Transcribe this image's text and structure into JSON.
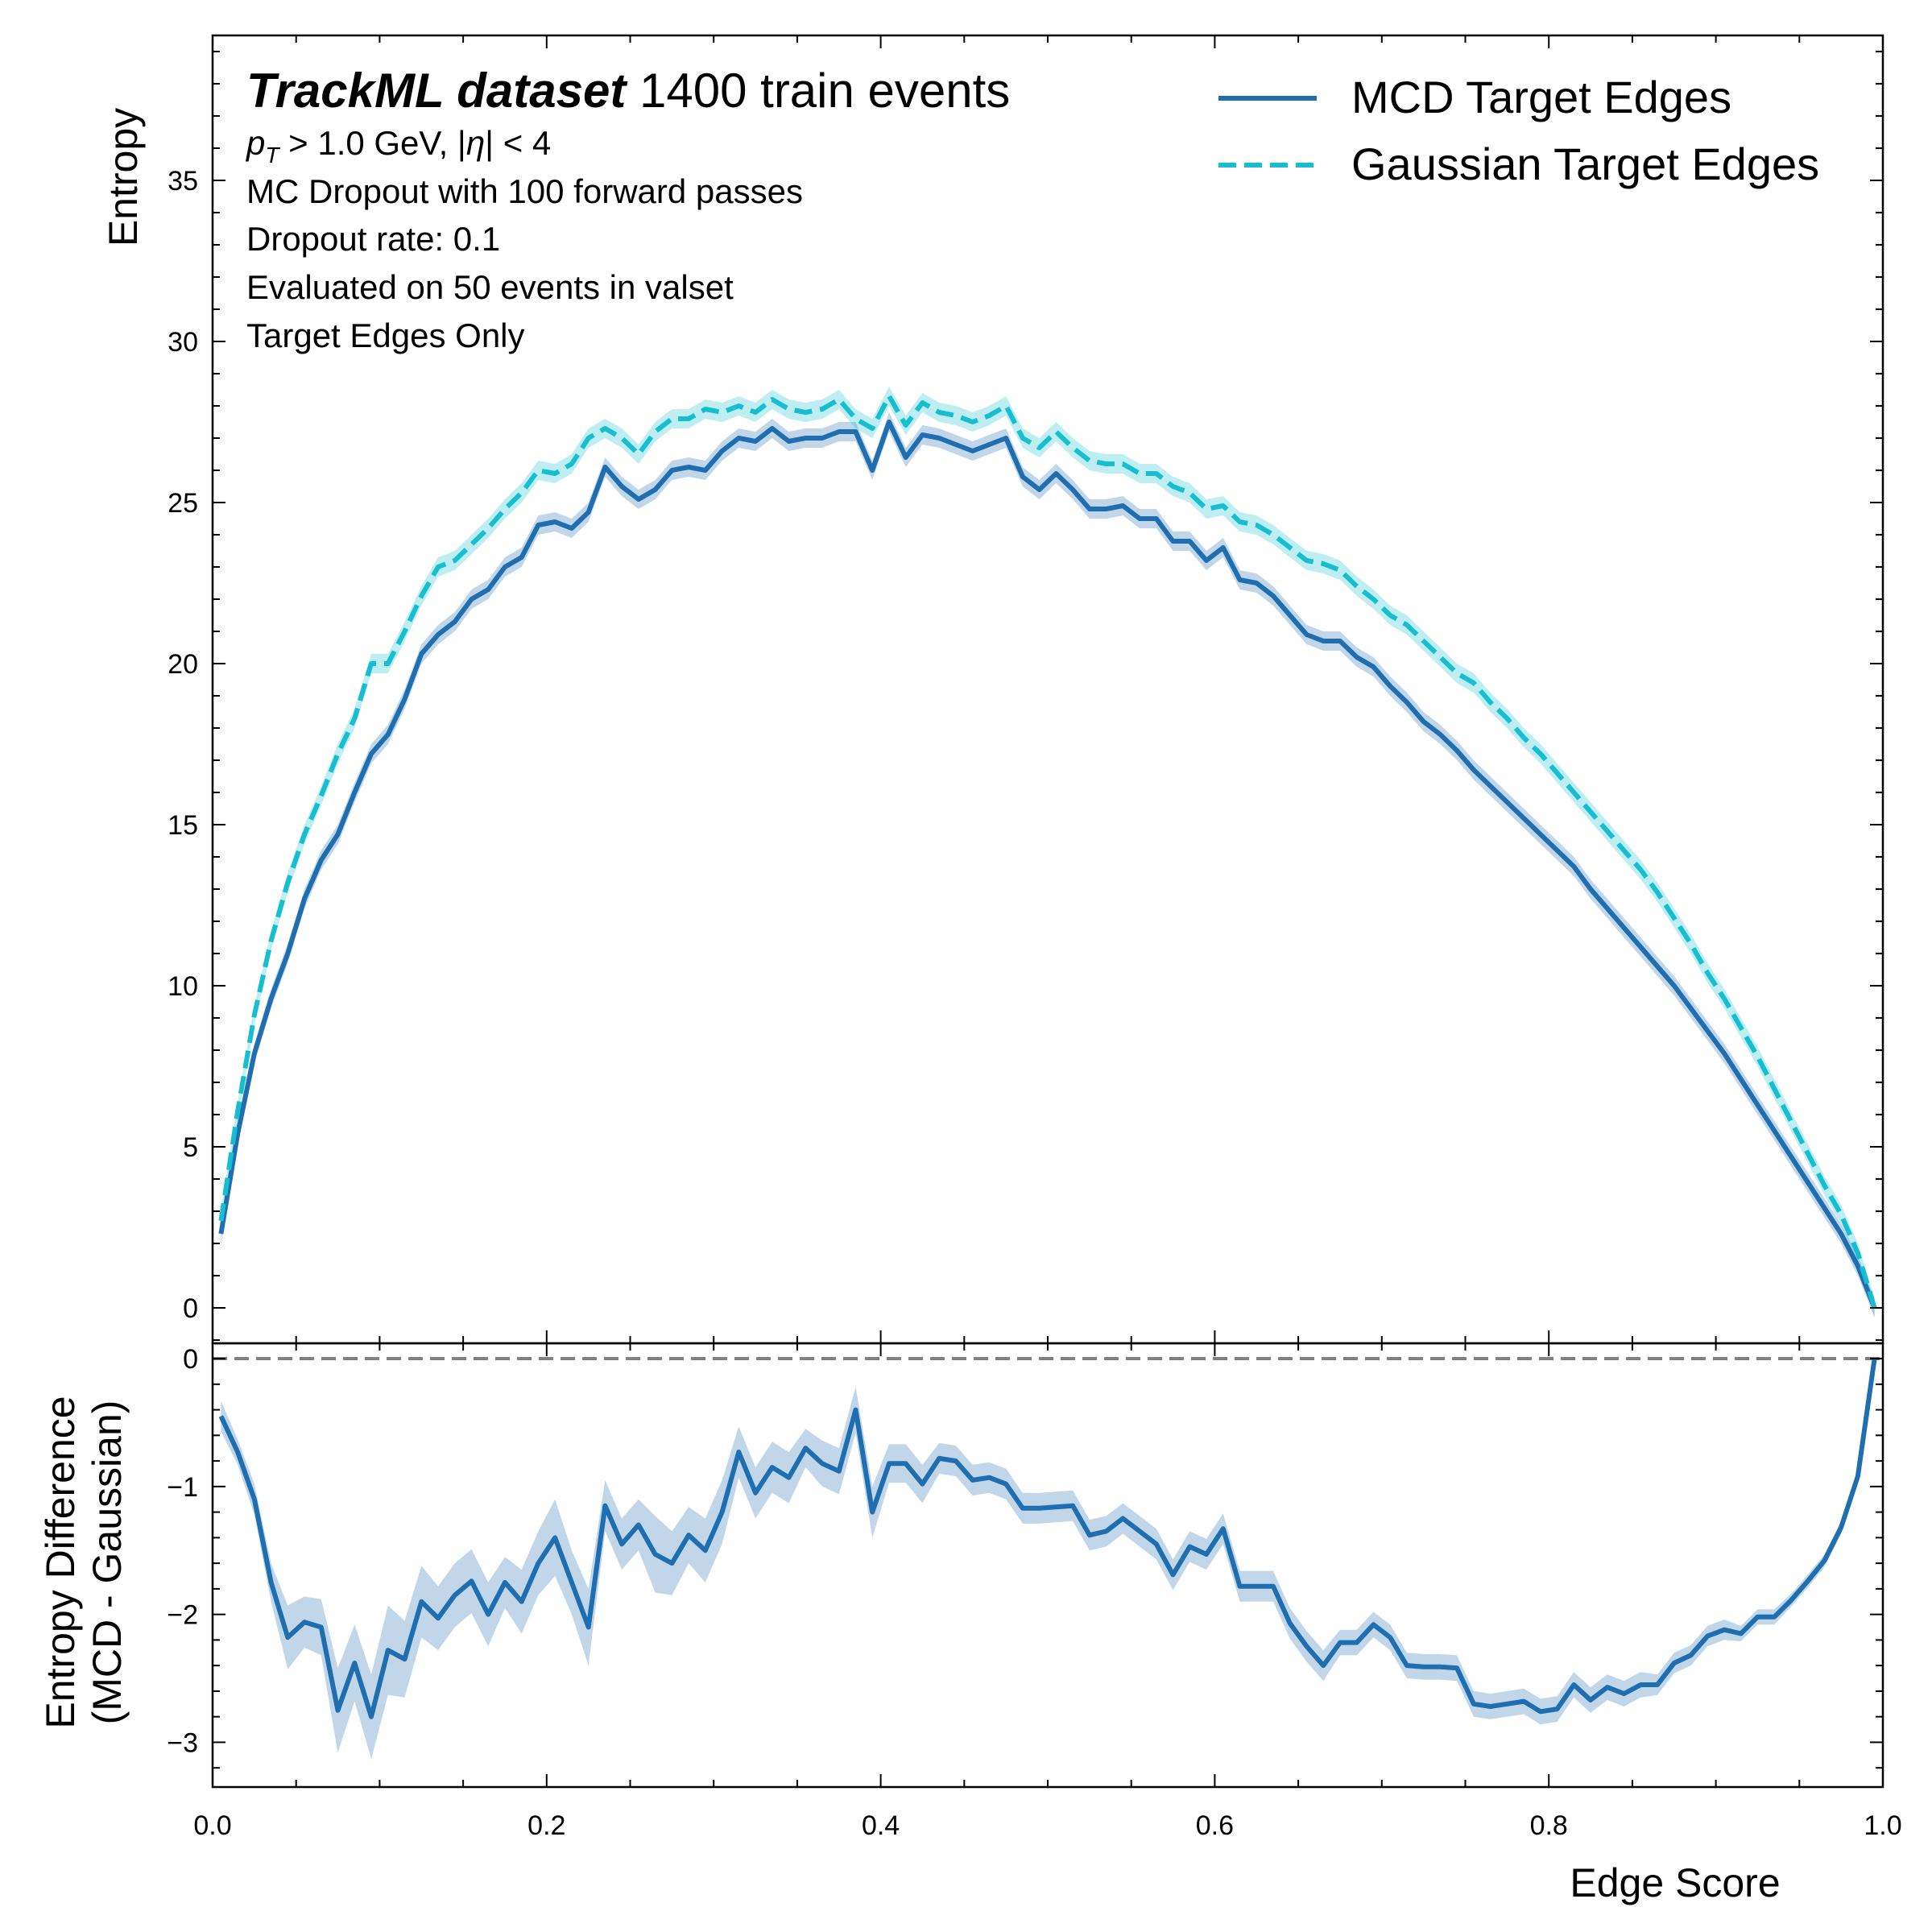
{
  "header": {
    "dataset_bold": "TrackML dataset",
    "dataset_rest": " 1400 train events"
  },
  "info_lines": [
    "p_T > 1.0 GeV, |η| < 4",
    "MC Dropout with 100 forward passes",
    "Dropout rate: 0.1",
    "Evaluated on 50 events in valset",
    "Target Edges Only"
  ],
  "legend": [
    {
      "label": "MCD Target Edges",
      "color": "#1f6eb0",
      "style": "solid"
    },
    {
      "label": "Gaussian Target Edges",
      "color": "#17becf",
      "style": "dashed"
    }
  ],
  "chart_data": [
    {
      "type": "line",
      "panel": "top",
      "ylabel": "Entropy",
      "xlim": [
        0.0,
        1.0
      ],
      "ylim": [
        -1.1,
        39.5
      ],
      "yticks": [
        0,
        5,
        10,
        15,
        20,
        25,
        30,
        35
      ],
      "x": [
        0.005,
        0.015,
        0.025,
        0.035,
        0.045,
        0.055,
        0.065,
        0.075,
        0.085,
        0.095,
        0.105,
        0.115,
        0.125,
        0.135,
        0.145,
        0.155,
        0.165,
        0.175,
        0.185,
        0.195,
        0.205,
        0.215,
        0.225,
        0.235,
        0.245,
        0.255,
        0.265,
        0.275,
        0.285,
        0.295,
        0.305,
        0.315,
        0.325,
        0.335,
        0.345,
        0.355,
        0.365,
        0.375,
        0.385,
        0.395,
        0.405,
        0.415,
        0.425,
        0.435,
        0.445,
        0.455,
        0.465,
        0.475,
        0.485,
        0.495,
        0.505,
        0.515,
        0.525,
        0.535,
        0.545,
        0.555,
        0.565,
        0.575,
        0.585,
        0.595,
        0.605,
        0.615,
        0.625,
        0.635,
        0.645,
        0.655,
        0.665,
        0.675,
        0.685,
        0.695,
        0.705,
        0.715,
        0.725,
        0.735,
        0.745,
        0.755,
        0.765,
        0.775,
        0.785,
        0.795,
        0.805,
        0.815,
        0.825,
        0.835,
        0.845,
        0.855,
        0.865,
        0.875,
        0.885,
        0.895,
        0.905,
        0.915,
        0.925,
        0.935,
        0.945,
        0.955,
        0.965,
        0.975,
        0.985,
        0.995
      ],
      "series": [
        {
          "name": "MCD Target Edges",
          "color": "#1f6eb0",
          "dash": false,
          "band": 0.3,
          "values": [
            2.3,
            5.4,
            7.9,
            9.6,
            11.0,
            12.7,
            13.9,
            14.7,
            16.0,
            17.2,
            17.8,
            18.9,
            20.3,
            20.9,
            21.3,
            22.0,
            22.3,
            23.0,
            23.3,
            24.3,
            24.4,
            24.2,
            24.7,
            26.1,
            25.5,
            25.1,
            25.4,
            26.0,
            26.1,
            26.0,
            26.6,
            27.0,
            26.9,
            27.3,
            26.9,
            27.0,
            27.0,
            27.2,
            27.2,
            26.0,
            27.5,
            26.4,
            27.1,
            27.0,
            26.8,
            26.6,
            26.8,
            27.0,
            25.8,
            25.4,
            25.9,
            25.4,
            24.8,
            24.8,
            24.9,
            24.5,
            24.5,
            23.8,
            23.8,
            23.2,
            23.6,
            22.6,
            22.5,
            22.1,
            21.5,
            20.9,
            20.7,
            20.7,
            20.2,
            19.9,
            19.3,
            18.8,
            18.2,
            17.8,
            17.3,
            16.7,
            16.2,
            15.7,
            15.2,
            14.7,
            14.2,
            13.7,
            13.0,
            12.4,
            11.8,
            11.2,
            10.6,
            10.0,
            9.3,
            8.6,
            7.9,
            7.1,
            6.3,
            5.5,
            4.7,
            3.9,
            3.1,
            2.3,
            1.3,
            0.0
          ]
        },
        {
          "name": "Gaussian Target Edges",
          "color": "#17becf",
          "dash": true,
          "band": 0.3,
          "values": [
            2.7,
            6.1,
            9.1,
            11.4,
            13.2,
            14.7,
            15.9,
            17.2,
            18.3,
            20.0,
            20.0,
            21.0,
            22.1,
            23.0,
            23.2,
            23.7,
            24.2,
            24.8,
            25.3,
            26.0,
            25.9,
            26.2,
            27.0,
            27.3,
            27.0,
            26.5,
            27.2,
            27.6,
            27.6,
            27.9,
            27.8,
            28.0,
            27.8,
            28.2,
            27.9,
            27.8,
            27.9,
            28.2,
            27.6,
            27.3,
            28.3,
            27.4,
            28.1,
            27.8,
            27.7,
            27.5,
            27.7,
            28.0,
            27.0,
            26.7,
            27.2,
            26.7,
            26.3,
            26.2,
            26.2,
            25.9,
            25.9,
            25.5,
            25.3,
            24.8,
            24.9,
            24.4,
            24.3,
            24.0,
            23.6,
            23.2,
            23.1,
            22.9,
            22.4,
            22.0,
            21.5,
            21.2,
            20.7,
            20.2,
            19.7,
            19.4,
            18.8,
            18.3,
            17.7,
            17.2,
            16.6,
            16.0,
            15.4,
            14.8,
            14.2,
            13.6,
            12.9,
            12.1,
            11.3,
            10.4,
            9.6,
            8.7,
            7.8,
            6.8,
            5.8,
            4.8,
            3.8,
            2.9,
            1.7,
            0.0
          ]
        }
      ]
    },
    {
      "type": "line",
      "panel": "bottom",
      "xlabel": "Edge Score",
      "ylabel_line1": "Entropy Difference",
      "ylabel_line2": "(MCD - Gaussian)",
      "xlim": [
        0.0,
        1.0
      ],
      "ylim": [
        -3.35,
        0.12
      ],
      "xticks": [
        0.0,
        0.2,
        0.4,
        0.6,
        0.8,
        1.0
      ],
      "xtick_labels": [
        "0.0",
        "0.2",
        "0.4",
        "0.6",
        "0.8",
        "1.0"
      ],
      "yticks": [
        0,
        -1,
        -2,
        -3
      ],
      "ytick_labels": [
        "0",
        "−1",
        "−2",
        "−3"
      ],
      "reference_line": {
        "y": 0,
        "color": "#808080",
        "dash": true
      },
      "x": [
        0.005,
        0.015,
        0.025,
        0.035,
        0.045,
        0.055,
        0.065,
        0.075,
        0.085,
        0.095,
        0.105,
        0.115,
        0.125,
        0.135,
        0.145,
        0.155,
        0.165,
        0.175,
        0.185,
        0.195,
        0.205,
        0.215,
        0.225,
        0.235,
        0.245,
        0.255,
        0.265,
        0.275,
        0.285,
        0.295,
        0.305,
        0.315,
        0.325,
        0.335,
        0.345,
        0.355,
        0.365,
        0.375,
        0.385,
        0.395,
        0.405,
        0.415,
        0.425,
        0.435,
        0.445,
        0.455,
        0.465,
        0.475,
        0.485,
        0.495,
        0.505,
        0.515,
        0.525,
        0.535,
        0.545,
        0.555,
        0.565,
        0.575,
        0.585,
        0.595,
        0.605,
        0.615,
        0.625,
        0.635,
        0.645,
        0.655,
        0.665,
        0.675,
        0.685,
        0.695,
        0.705,
        0.715,
        0.725,
        0.735,
        0.745,
        0.755,
        0.765,
        0.775,
        0.785,
        0.795,
        0.805,
        0.815,
        0.825,
        0.835,
        0.845,
        0.855,
        0.865,
        0.875,
        0.885,
        0.895,
        0.905,
        0.915,
        0.925,
        0.935,
        0.945,
        0.955,
        0.965,
        0.975,
        0.985,
        0.995
      ],
      "series": [
        {
          "name": "MCD - Gaussian",
          "color": "#1f6eb0",
          "dash": false,
          "values": [
            -0.45,
            -0.73,
            -1.1,
            -1.75,
            -2.18,
            -2.06,
            -2.1,
            -2.75,
            -2.38,
            -2.8,
            -2.28,
            -2.35,
            -1.9,
            -2.03,
            -1.85,
            -1.74,
            -2.0,
            -1.75,
            -1.9,
            -1.6,
            -1.4,
            -1.75,
            -2.1,
            -1.15,
            -1.45,
            -1.3,
            -1.53,
            -1.6,
            -1.38,
            -1.5,
            -1.2,
            -0.73,
            -1.05,
            -0.85,
            -0.93,
            -0.7,
            -0.82,
            -0.88,
            -0.4,
            -1.2,
            -0.82,
            -0.82,
            -0.98,
            -0.78,
            -0.8,
            -0.95,
            -0.93,
            -0.98,
            -1.17,
            -1.17,
            -1.16,
            -1.15,
            -1.38,
            -1.35,
            -1.25,
            -1.35,
            -1.45,
            -1.69,
            -1.47,
            -1.53,
            -1.33,
            -1.78,
            -1.78,
            -1.78,
            -2.07,
            -2.25,
            -2.4,
            -2.22,
            -2.22,
            -2.08,
            -2.18,
            -2.4,
            -2.41,
            -2.41,
            -2.42,
            -2.7,
            -2.72,
            -2.7,
            -2.68,
            -2.76,
            -2.74,
            -2.55,
            -2.67,
            -2.57,
            -2.62,
            -2.55,
            -2.55,
            -2.38,
            -2.32,
            -2.17,
            -2.12,
            -2.15,
            -2.02,
            -2.02,
            -1.89,
            -1.74,
            -1.58,
            -1.32,
            -0.92,
            0.0
          ],
          "band": [
            0.12,
            0.1,
            0.12,
            0.15,
            0.25,
            0.2,
            0.22,
            0.33,
            0.3,
            0.33,
            0.35,
            0.3,
            0.28,
            0.25,
            0.25,
            0.25,
            0.25,
            0.2,
            0.25,
            0.25,
            0.3,
            0.25,
            0.3,
            0.2,
            0.2,
            0.2,
            0.3,
            0.25,
            0.22,
            0.25,
            0.25,
            0.2,
            0.2,
            0.2,
            0.2,
            0.15,
            0.18,
            0.18,
            0.18,
            0.2,
            0.15,
            0.15,
            0.15,
            0.12,
            0.12,
            0.12,
            0.12,
            0.12,
            0.12,
            0.12,
            0.12,
            0.12,
            0.12,
            0.12,
            0.12,
            0.12,
            0.12,
            0.12,
            0.12,
            0.12,
            0.12,
            0.12,
            0.12,
            0.12,
            0.12,
            0.12,
            0.12,
            0.1,
            0.1,
            0.1,
            0.1,
            0.1,
            0.1,
            0.1,
            0.1,
            0.1,
            0.1,
            0.1,
            0.1,
            0.1,
            0.1,
            0.1,
            0.1,
            0.1,
            0.1,
            0.1,
            0.08,
            0.08,
            0.08,
            0.08,
            0.08,
            0.06,
            0.06,
            0.06,
            0.05,
            0.05,
            0.05,
            0.05,
            0.04,
            0.02
          ]
        }
      ]
    }
  ]
}
